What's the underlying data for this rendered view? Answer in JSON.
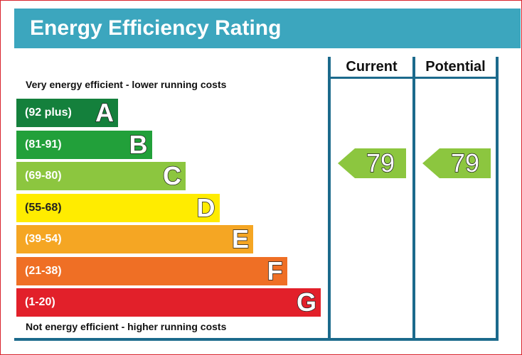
{
  "chart_data": {
    "type": "table",
    "title": "Energy Efficiency Rating",
    "top_caption": "Very energy efficient - lower running costs",
    "bottom_caption": "Not energy efficient - higher running costs",
    "columns": [
      "Current",
      "Potential"
    ],
    "bands": [
      {
        "range": "(92 plus)",
        "letter": "A",
        "color": "#14803c"
      },
      {
        "range": "(81-91)",
        "letter": "B",
        "color": "#22a03a"
      },
      {
        "range": "(69-80)",
        "letter": "C",
        "color": "#8cc63f"
      },
      {
        "range": "(55-68)",
        "letter": "D",
        "color": "#ffec00"
      },
      {
        "range": "(39-54)",
        "letter": "E",
        "color": "#f5a623"
      },
      {
        "range": "(21-38)",
        "letter": "F",
        "color": "#ef6f25"
      },
      {
        "range": "(1-20)",
        "letter": "G",
        "color": "#e2202a"
      }
    ],
    "current": "79",
    "potential": "79",
    "rating_color": "#8cc63f"
  }
}
